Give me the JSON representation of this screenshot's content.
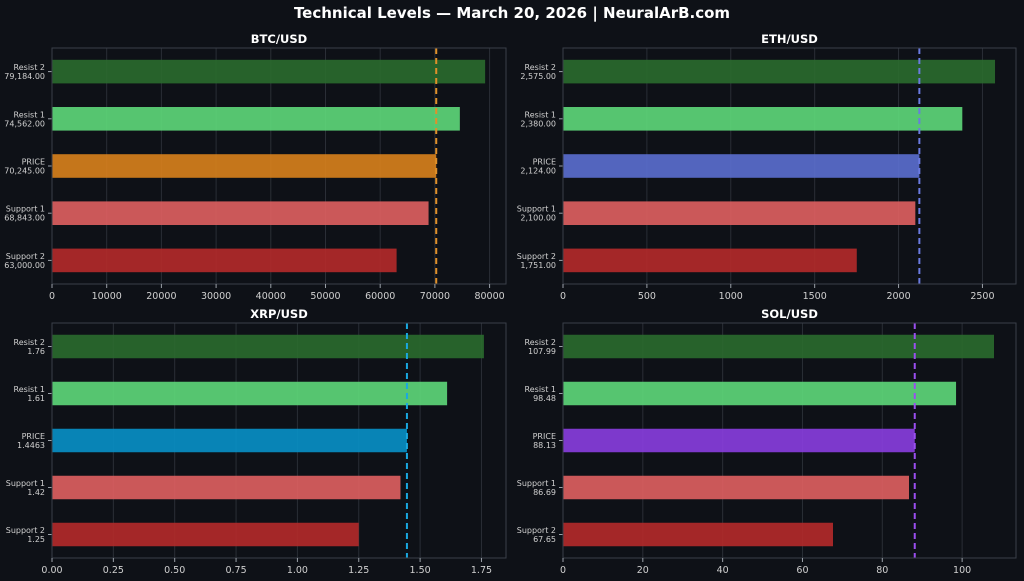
{
  "title": "Technical Levels — March 20, 2026 | NeuralArB.com",
  "chart_data": [
    {
      "type": "bar",
      "orientation": "horizontal",
      "title": "BTC/USD",
      "categories": [
        "Resist 2",
        "Resist 1",
        "PRICE",
        "Support 1",
        "Support 2"
      ],
      "value_labels": [
        "79,184.00",
        "74,562.00",
        "70,245.00",
        "68,843.00",
        "63,000.00"
      ],
      "values": [
        79184,
        74562,
        70245,
        68843,
        63000
      ],
      "colors": [
        "#2a6b2e",
        "#5ed97a",
        "#d9821c",
        "#e06060",
        "#b52a2a"
      ],
      "price_line": 70245,
      "price_line_color": "#e0902a",
      "xlim": [
        0,
        83000
      ],
      "xticks": [
        0,
        10000,
        20000,
        30000,
        40000,
        50000,
        60000,
        70000,
        80000
      ],
      "xtick_labels": [
        "0",
        "10000",
        "20000",
        "30000",
        "40000",
        "50000",
        "60000",
        "70000",
        "80000"
      ],
      "grid": true
    },
    {
      "type": "bar",
      "orientation": "horizontal",
      "title": "ETH/USD",
      "categories": [
        "Resist 2",
        "Resist 1",
        "PRICE",
        "Support 1",
        "Support 2"
      ],
      "value_labels": [
        "2,575.00",
        "2,380.00",
        "2,124.00",
        "2,100.00",
        "1,751.00"
      ],
      "values": [
        2575,
        2380,
        2124,
        2100,
        1751
      ],
      "colors": [
        "#2a6b2e",
        "#5ed97a",
        "#5b6fd0",
        "#e06060",
        "#b52a2a"
      ],
      "price_line": 2124,
      "price_line_color": "#6a7ae0",
      "xlim": [
        0,
        2700
      ],
      "xticks": [
        0,
        500,
        1000,
        1500,
        2000,
        2500
      ],
      "xtick_labels": [
        "0",
        "500",
        "1000",
        "1500",
        "2000",
        "2500"
      ],
      "grid": true
    },
    {
      "type": "bar",
      "orientation": "horizontal",
      "title": "XRP/USD",
      "categories": [
        "Resist 2",
        "Resist 1",
        "PRICE",
        "Support 1",
        "Support 2"
      ],
      "value_labels": [
        "1.76",
        "1.61",
        "1.4463",
        "1.42",
        "1.25"
      ],
      "values": [
        1.76,
        1.61,
        1.4463,
        1.42,
        1.25
      ],
      "colors": [
        "#2a6b2e",
        "#5ed97a",
        "#0891c8",
        "#e06060",
        "#b52a2a"
      ],
      "price_line": 1.4463,
      "price_line_color": "#1aa8e0",
      "xlim": [
        0,
        1.85
      ],
      "xticks": [
        0,
        0.25,
        0.5,
        0.75,
        1.0,
        1.25,
        1.5,
        1.75
      ],
      "xtick_labels": [
        "0.00",
        "0.25",
        "0.50",
        "0.75",
        "1.00",
        "1.25",
        "1.50",
        "1.75"
      ],
      "grid": true
    },
    {
      "type": "bar",
      "orientation": "horizontal",
      "title": "SOL/USD",
      "categories": [
        "Resist 2",
        "Resist 1",
        "PRICE",
        "Support 1",
        "Support 2"
      ],
      "value_labels": [
        "107.99",
        "98.48",
        "88.13",
        "86.69",
        "67.65"
      ],
      "values": [
        107.99,
        98.48,
        88.13,
        86.69,
        67.65
      ],
      "colors": [
        "#2a6b2e",
        "#5ed97a",
        "#8a3ee0",
        "#e06060",
        "#b52a2a"
      ],
      "price_line": 88.13,
      "price_line_color": "#9a4ef0",
      "xlim": [
        0,
        113.5
      ],
      "xticks": [
        0,
        20,
        40,
        60,
        80,
        100
      ],
      "xtick_labels": [
        "0",
        "20",
        "40",
        "60",
        "80",
        "100"
      ],
      "grid": true
    }
  ]
}
